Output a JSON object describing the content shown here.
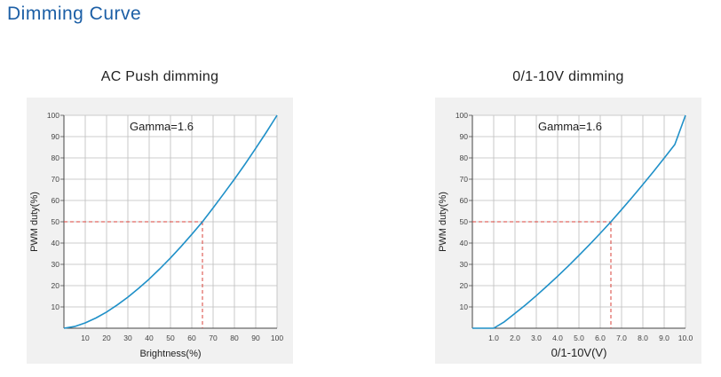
{
  "page": {
    "title": "Dimming Curve"
  },
  "colors": {
    "title": "#1c5fa6",
    "curve": "#1f90c8",
    "guide": "#d9413a",
    "grid": "#bdbdbd",
    "panel": "#f1f1f1"
  },
  "chart_data": [
    {
      "type": "line",
      "title": "AC Push dimming",
      "annotation": "Gamma=1.6",
      "xlabel": "Brightness(%)",
      "ylabel": "PWM duty(%)",
      "xlim": [
        0,
        100
      ],
      "ylim": [
        0,
        100
      ],
      "x_ticks": [
        "10",
        "20",
        "30",
        "40",
        "50",
        "60",
        "70",
        "80",
        "90",
        "100"
      ],
      "y_ticks": [
        "10",
        "20",
        "30",
        "40",
        "50",
        "60",
        "70",
        "80",
        "90",
        "100"
      ],
      "grid": true,
      "series": [
        {
          "x": [
            0,
            5,
            10,
            15,
            20,
            25,
            30,
            35,
            40,
            45,
            50,
            55,
            60,
            65,
            70,
            75,
            80,
            85,
            90,
            95,
            100
          ],
          "y": [
            0,
            0.8,
            2.5,
            4.8,
            7.6,
            10.9,
            14.6,
            18.7,
            23.1,
            27.9,
            33.0,
            38.4,
            44.1,
            50.0,
            56.5,
            63.2,
            70.0,
            77.1,
            84.5,
            92.1,
            100
          ]
        }
      ],
      "guide": {
        "x": 65,
        "y": 50
      }
    },
    {
      "type": "line",
      "title": "0/1-10V dimming",
      "annotation": "Gamma=1.6",
      "xlabel": "0/1-10V(V)",
      "ylabel": "PWM duty(%)",
      "xlim": [
        0,
        10
      ],
      "ylim": [
        0,
        100
      ],
      "x_ticks": [
        "1.0",
        "2.0",
        "3.0",
        "4.0",
        "5.0",
        "6.0",
        "7.0",
        "8.0",
        "9.0",
        "10.0"
      ],
      "y_ticks": [
        "10",
        "20",
        "30",
        "40",
        "50",
        "60",
        "70",
        "80",
        "90",
        "100"
      ],
      "grid": true,
      "series": [
        {
          "x": [
            0,
            1,
            1.5,
            2,
            2.5,
            3,
            3.5,
            4,
            4.5,
            5,
            5.5,
            6,
            6.5,
            7,
            7.5,
            8,
            8.5,
            9,
            9.5,
            10
          ],
          "y": [
            0,
            0,
            3.0,
            7.0,
            11.0,
            15.3,
            19.8,
            24.4,
            29.2,
            34.2,
            39.3,
            44.6,
            50.0,
            55.7,
            61.5,
            67.5,
            73.6,
            79.9,
            86.3,
            100
          ]
        }
      ],
      "guide": {
        "x": 6.5,
        "y": 50
      }
    }
  ]
}
